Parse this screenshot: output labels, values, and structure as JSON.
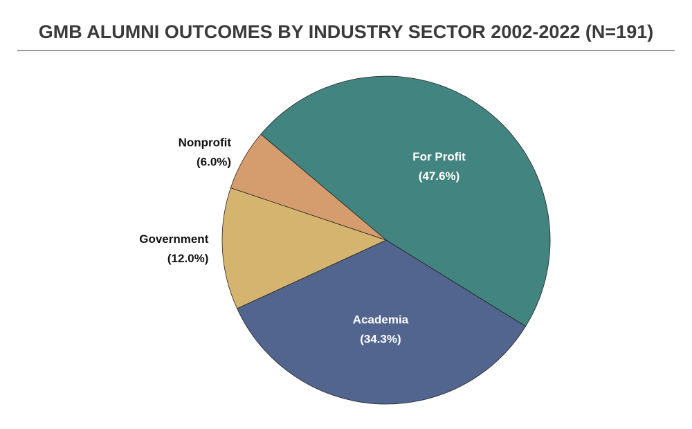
{
  "chart_data": {
    "type": "pie",
    "title": "GMB ALUMNI OUTCOMES BY INDUSTRY SECTOR 2002-2022 (N=191)",
    "categories": [
      "For Profit",
      "Academia",
      "Government",
      "Nonprofit"
    ],
    "values": [
      47.6,
      34.3,
      12.0,
      6.0
    ],
    "value_labels": [
      "(47.6%)",
      "(34.3%)",
      "(12.0%)",
      "(6.0%)"
    ],
    "colors": [
      "#428480",
      "#52658f",
      "#d4b46e",
      "#d59c6e"
    ]
  }
}
